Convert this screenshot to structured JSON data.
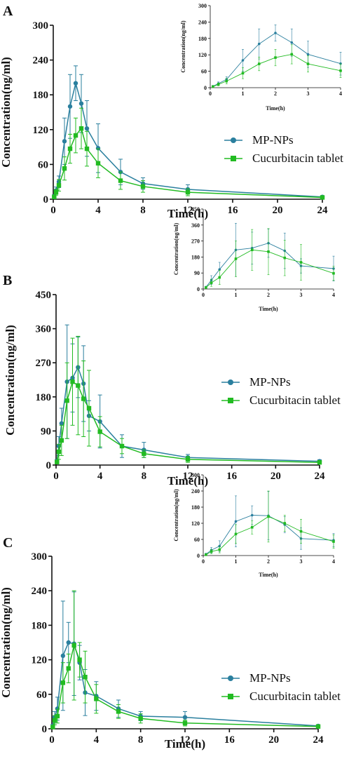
{
  "chart_data": [
    {
      "type": "line",
      "panel_label": "A",
      "xlabel": "Time(h)",
      "ylabel": "Concentration(ng/ml)",
      "xlim": [
        0,
        24
      ],
      "ylim": [
        0,
        300
      ],
      "xticks": [
        "0",
        "4",
        "8",
        "12",
        "16",
        "20",
        "24"
      ],
      "yticks": [
        "0",
        "60",
        "120",
        "180",
        "240",
        "300"
      ],
      "legend_position": "center-right",
      "series": [
        {
          "name": "MP-NPs",
          "color": "#2a7f9e",
          "marker": "circle",
          "x": [
            0.083,
            0.25,
            0.5,
            1,
            1.5,
            2,
            2.5,
            3,
            4,
            6,
            8,
            12,
            24
          ],
          "values": [
            5,
            15,
            30,
            100,
            160,
            200,
            165,
            122,
            88,
            47,
            27,
            17,
            4
          ],
          "errors": [
            3,
            6,
            10,
            40,
            55,
            30,
            50,
            48,
            42,
            22,
            10,
            8,
            2
          ]
        },
        {
          "name": "Cucurbitacin tablet",
          "color": "#22bb22",
          "marker": "square",
          "x": [
            0.083,
            0.25,
            0.5,
            1,
            1.5,
            2,
            2.5,
            3,
            4,
            6,
            8,
            12,
            24
          ],
          "values": [
            4,
            12,
            24,
            53,
            87,
            110,
            122,
            87,
            62,
            32,
            22,
            12,
            3
          ],
          "errors": [
            3,
            5,
            10,
            20,
            25,
            30,
            35,
            30,
            25,
            15,
            10,
            6,
            2
          ]
        }
      ],
      "inset": {
        "xlabel": "Time(h)",
        "ylabel": "Concentration(ng/ml)",
        "xlim": [
          0,
          4
        ],
        "ylim": [
          0,
          300
        ],
        "xticks": [
          "0",
          "1",
          "2",
          "3",
          "4"
        ],
        "yticks": [
          "0",
          "60",
          "120",
          "180",
          "240",
          "300"
        ]
      }
    },
    {
      "type": "line",
      "panel_label": "B",
      "xlabel": "Time(h)",
      "ylabel": "Concentration(ng/ml)",
      "xlim": [
        0,
        24
      ],
      "ylim": [
        0,
        450
      ],
      "xticks": [
        "0",
        "4",
        "8",
        "12",
        "16",
        "20",
        "24"
      ],
      "yticks": [
        "0",
        "90",
        "180",
        "270",
        "360",
        "450"
      ],
      "legend_position": "center-right",
      "series": [
        {
          "name": "MP-NPs",
          "color": "#2a7f9e",
          "marker": "circle",
          "x": [
            0.083,
            0.25,
            0.5,
            1,
            1.5,
            2,
            2.5,
            3,
            4,
            6,
            8,
            12,
            24
          ],
          "values": [
            10,
            50,
            110,
            220,
            230,
            258,
            215,
            130,
            115,
            50,
            40,
            20,
            10
          ],
          "errors": [
            5,
            25,
            40,
            150,
            90,
            80,
            100,
            40,
            70,
            30,
            20,
            8,
            4
          ]
        },
        {
          "name": "Cucurbitacin tablet",
          "color": "#22bb22",
          "marker": "square",
          "x": [
            0.083,
            0.25,
            0.5,
            1,
            1.5,
            2,
            2.5,
            3,
            4,
            6,
            8,
            12,
            24
          ],
          "values": [
            8,
            35,
            65,
            170,
            220,
            210,
            175,
            150,
            88,
            50,
            30,
            15,
            7
          ],
          "errors": [
            5,
            20,
            40,
            100,
            115,
            130,
            100,
            100,
            40,
            20,
            10,
            8,
            4
          ]
        }
      ],
      "inset": {
        "xlabel": "Time(h)",
        "ylabel": "Concentration(ng/ml)",
        "xlim": [
          0,
          4
        ],
        "ylim": [
          0,
          450
        ],
        "xticks": [
          "0",
          "1",
          "2",
          "3",
          "4"
        ],
        "yticks": [
          "0",
          "90",
          "180",
          "270",
          "360",
          "450"
        ]
      }
    },
    {
      "type": "line",
      "panel_label": "C",
      "xlabel": "Time(h)",
      "ylabel": "Concentration(ng/ml)",
      "xlim": [
        0,
        24
      ],
      "ylim": [
        0,
        300
      ],
      "xticks": [
        "0",
        "4",
        "8",
        "12",
        "16",
        "20",
        "24"
      ],
      "yticks": [
        "0",
        "60",
        "120",
        "180",
        "240",
        "300"
      ],
      "legend_position": "center-right",
      "series": [
        {
          "name": "MP-NPs",
          "color": "#2a7f9e",
          "marker": "circle",
          "x": [
            0.083,
            0.25,
            0.5,
            1,
            1.5,
            2,
            2.5,
            3,
            4,
            6,
            8,
            12,
            24
          ],
          "values": [
            5,
            20,
            35,
            127,
            150,
            148,
            115,
            63,
            57,
            35,
            22,
            20,
            5
          ],
          "errors": [
            3,
            10,
            20,
            95,
            35,
            90,
            30,
            40,
            25,
            15,
            8,
            10,
            2
          ]
        },
        {
          "name": "Cucurbitacin tablet",
          "color": "#22bb22",
          "marker": "square",
          "x": [
            0.083,
            0.25,
            0.5,
            1,
            1.5,
            2,
            2.5,
            3,
            4,
            6,
            8,
            12,
            24
          ],
          "values": [
            3,
            15,
            22,
            80,
            105,
            145,
            120,
            90,
            52,
            30,
            18,
            10,
            4
          ],
          "errors": [
            2,
            8,
            12,
            35,
            25,
            95,
            30,
            45,
            25,
            12,
            8,
            5,
            2
          ]
        }
      ],
      "inset": {
        "xlabel": "Time(h)",
        "ylabel": "Concentration(ng/ml)",
        "xlim": [
          0,
          4
        ],
        "ylim": [
          0,
          300
        ],
        "xticks": [
          "0",
          "1",
          "2",
          "3",
          "4"
        ],
        "yticks": [
          "0",
          "60",
          "120",
          "180",
          "240",
          "300"
        ]
      }
    }
  ]
}
